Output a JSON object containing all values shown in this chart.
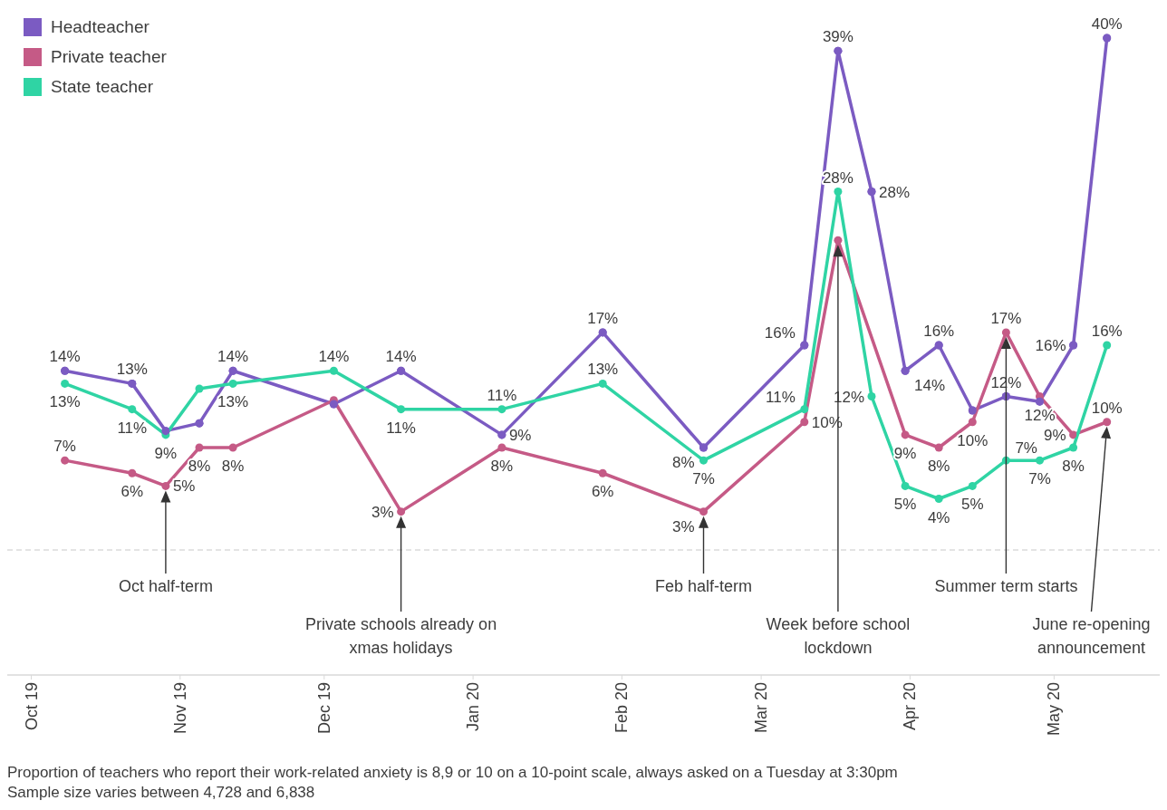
{
  "chart_data": {
    "type": "line",
    "x": [
      "2019-10-08",
      "2019-10-22",
      "2019-10-29",
      "2019-11-05",
      "2019-11-12",
      "2019-12-03",
      "2019-12-17",
      "2020-01-07",
      "2020-01-28",
      "2020-02-18",
      "2020-03-10",
      "2020-03-17",
      "2020-03-24",
      "2020-03-31",
      "2020-04-07",
      "2020-04-14",
      "2020-04-21",
      "2020-04-28",
      "2020-05-05",
      "2020-05-12"
    ],
    "series": [
      {
        "name": "Headteacher",
        "color": "#7b5bc2",
        "values": [
          14,
          13,
          9.3,
          9.9,
          14,
          11.4,
          14,
          9,
          17,
          8,
          16,
          39,
          28,
          14,
          16,
          10.9,
          12,
          11.6,
          16,
          40
        ],
        "value_labels": [
          "14%",
          "13%",
          null,
          null,
          "14%",
          null,
          "14%",
          "9%",
          "17%",
          "8%",
          "16%",
          "39%",
          "28%",
          "14%",
          "16%",
          null,
          "12%",
          null,
          "16%",
          "40%"
        ]
      },
      {
        "name": "Private teacher",
        "color": "#c55a86",
        "x": [
          "2019-10-08",
          "2019-10-22",
          "2019-10-29",
          "2019-11-05",
          "2019-11-12",
          "2019-12-03",
          "2019-12-17",
          "2020-01-07",
          "2020-01-28",
          "2020-02-18",
          "2020-03-10",
          "2020-03-17",
          "2020-03-31",
          "2020-04-07",
          "2020-04-14",
          "2020-04-21",
          "2020-04-28",
          "2020-05-05",
          "2020-05-12"
        ],
        "values": [
          7,
          6,
          5,
          8,
          8,
          11.7,
          3,
          8,
          6,
          3,
          10,
          24.2,
          9,
          8,
          10,
          17,
          12,
          9,
          10
        ],
        "value_labels": [
          "7%",
          "6%",
          "5%",
          "8%",
          "8%",
          null,
          "3%",
          "8%",
          "6%",
          "3%",
          "10%",
          null,
          "9%",
          "8%",
          "10%",
          "17%",
          "12%",
          "9%",
          "10%"
        ]
      },
      {
        "name": "State teacher",
        "color": "#2fd4a4",
        "values": [
          13,
          11,
          9,
          12.6,
          13,
          14,
          11,
          11,
          13,
          7,
          11,
          28,
          12,
          5,
          4,
          5,
          7,
          7,
          8,
          16
        ],
        "value_labels": [
          "13%",
          "11%",
          "9%",
          null,
          "13%",
          "14%",
          "11%",
          "11%",
          "13%",
          "7%",
          "11%",
          "28%",
          "12%",
          "5%",
          "4%",
          "5%",
          "7%",
          "7%",
          "8%",
          "16%"
        ]
      }
    ],
    "xlim": [
      "2019-09-26",
      "2020-05-23"
    ],
    "xticks": [
      {
        "value": "2019-10-01",
        "label": "Oct 19"
      },
      {
        "value": "2019-11-01",
        "label": "Nov 19"
      },
      {
        "value": "2019-12-01",
        "label": "Dec 19"
      },
      {
        "value": "2020-01-01",
        "label": "Jan 20"
      },
      {
        "value": "2020-02-01",
        "label": "Feb 20"
      },
      {
        "value": "2020-03-01",
        "label": "Mar 20"
      },
      {
        "value": "2020-04-01",
        "label": "Apr 20"
      },
      {
        "value": "2020-05-01",
        "label": "May 20"
      }
    ],
    "tick_labels": "x",
    "marker": "circle",
    "legend": "top left",
    "ref_lines": [
      {
        "axis": "y",
        "value": 0,
        "color": "#c8c8c8",
        "line_style": "dashed"
      }
    ],
    "annotations": [
      "Oct half-term",
      "Private schools already on xmas holidays",
      "Feb half-term",
      "Week before school lockdown",
      "Summer term starts",
      "June re-opening announcement",
      "Proportion of teachers who report their work-related anxiety is 8,9 or 10 on a 10-point scale, always asked on a Tuesday at 3:30pm",
      "Sample size varies between 4,728 and 6,838"
    ]
  }
}
